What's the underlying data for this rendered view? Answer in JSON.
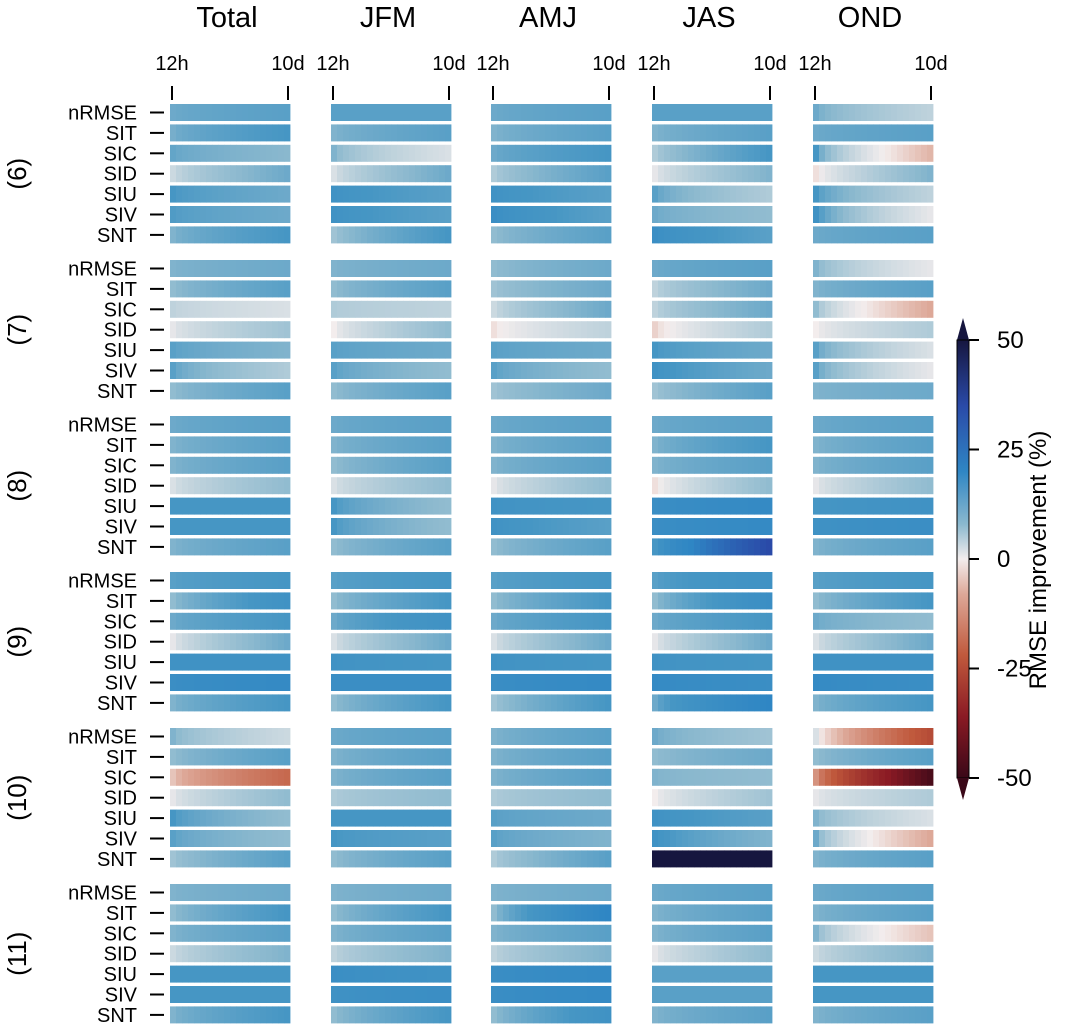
{
  "chart_data": {
    "type": "heatmap",
    "column_titles": [
      "Total",
      "JFM",
      "AMJ",
      "JAS",
      "OND"
    ],
    "x_tick_labels": [
      "12h",
      "10d"
    ],
    "variables": [
      "nRMSE",
      "SIT",
      "SIC",
      "SID",
      "SIU",
      "SIV",
      "SNT"
    ],
    "groups": [
      "(6)",
      "(7)",
      "(8)",
      "(9)",
      "(10)",
      "(11)"
    ],
    "colorbar": {
      "label": "RMSE improvement (%)",
      "range": [
        -50,
        50
      ],
      "ticks": [
        50,
        25,
        0,
        -25,
        -50
      ],
      "tick_labels": [
        "50",
        "25",
        "0",
        "-25",
        "-50"
      ],
      "extend": "both"
    },
    "cells_per_strip": 20,
    "values": {
      "(6)": {
        "Total": {
          "nRMSE": [
            18,
            20
          ],
          "SIT": [
            17,
            22
          ],
          "SIC": [
            19,
            15
          ],
          "SID": [
            6,
            18
          ],
          "SIU": [
            22,
            18
          ],
          "SIV": [
            21,
            18
          ],
          "SNT": [
            16,
            22
          ]
        },
        "JFM": {
          "nRMSE": [
            20,
            20
          ],
          "SIT": [
            16,
            20
          ],
          "SIC": [
            16,
            4
          ],
          "SID": [
            4,
            18
          ],
          "SIU": [
            24,
            20
          ],
          "SIV": [
            24,
            20
          ],
          "SNT": [
            12,
            22
          ]
        },
        "AMJ": {
          "nRMSE": [
            18,
            20
          ],
          "SIT": [
            16,
            20
          ],
          "SIC": [
            18,
            22
          ],
          "SID": [
            10,
            20
          ],
          "SIU": [
            24,
            20
          ],
          "SIV": [
            26,
            20
          ],
          "SNT": [
            14,
            20
          ]
        },
        "JAS": {
          "nRMSE": [
            20,
            20
          ],
          "SIT": [
            16,
            20
          ],
          "SIC": [
            10,
            22
          ],
          "SID": [
            2,
            16
          ],
          "SIU": [
            20,
            10
          ],
          "SIV": [
            18,
            14
          ],
          "SNT": [
            26,
            20
          ]
        },
        "OND": {
          "nRMSE": [
            18,
            8
          ],
          "SIT": [
            18,
            20
          ],
          "SIC": [
            22,
            -8
          ],
          "SID": [
            -2,
            16
          ],
          "SIU": [
            22,
            8
          ],
          "SIV": [
            24,
            2
          ],
          "SNT": [
            18,
            20
          ]
        }
      },
      "(7)": {
        "Total": {
          "nRMSE": [
            16,
            18
          ],
          "SIT": [
            14,
            20
          ],
          "SIC": [
            8,
            4
          ],
          "SID": [
            2,
            12
          ],
          "SIU": [
            20,
            16
          ],
          "SIV": [
            20,
            10
          ],
          "SNT": [
            14,
            20
          ]
        },
        "JFM": {
          "nRMSE": [
            16,
            18
          ],
          "SIT": [
            14,
            20
          ],
          "SIC": [
            10,
            8
          ],
          "SID": [
            0,
            14
          ],
          "SIU": [
            20,
            18
          ],
          "SIV": [
            20,
            14
          ],
          "SNT": [
            14,
            20
          ]
        },
        "AMJ": {
          "nRMSE": [
            14,
            18
          ],
          "SIT": [
            12,
            18
          ],
          "SIC": [
            6,
            18
          ],
          "SID": [
            -2,
            8
          ],
          "SIU": [
            20,
            18
          ],
          "SIV": [
            20,
            14
          ],
          "SNT": [
            12,
            18
          ]
        },
        "JAS": {
          "nRMSE": [
            18,
            20
          ],
          "SIT": [
            8,
            18
          ],
          "SIC": [
            8,
            18
          ],
          "SID": [
            -4,
            10
          ],
          "SIU": [
            22,
            18
          ],
          "SIV": [
            24,
            18
          ],
          "SNT": [
            12,
            20
          ]
        },
        "OND": {
          "nRMSE": [
            16,
            2
          ],
          "SIT": [
            16,
            20
          ],
          "SIC": [
            14,
            -10
          ],
          "SID": [
            0,
            10
          ],
          "SIU": [
            20,
            4
          ],
          "SIV": [
            20,
            2
          ],
          "SNT": [
            16,
            18
          ]
        }
      },
      "(8)": {
        "Total": {
          "nRMSE": [
            18,
            20
          ],
          "SIT": [
            16,
            20
          ],
          "SIC": [
            16,
            20
          ],
          "SID": [
            4,
            14
          ],
          "SIU": [
            22,
            22
          ],
          "SIV": [
            22,
            22
          ],
          "SNT": [
            16,
            20
          ]
        },
        "JFM": {
          "nRMSE": [
            18,
            20
          ],
          "SIT": [
            16,
            20
          ],
          "SIC": [
            14,
            20
          ],
          "SID": [
            4,
            14
          ],
          "SIU": [
            22,
            14
          ],
          "SIV": [
            22,
            14
          ],
          "SNT": [
            14,
            20
          ]
        },
        "AMJ": {
          "nRMSE": [
            18,
            20
          ],
          "SIT": [
            16,
            20
          ],
          "SIC": [
            16,
            20
          ],
          "SID": [
            2,
            14
          ],
          "SIU": [
            24,
            22
          ],
          "SIV": [
            24,
            20
          ],
          "SNT": [
            14,
            20
          ]
        },
        "JAS": {
          "nRMSE": [
            18,
            20
          ],
          "SIT": [
            16,
            22
          ],
          "SIC": [
            16,
            20
          ],
          "SID": [
            -2,
            14
          ],
          "SIU": [
            26,
            28
          ],
          "SIV": [
            26,
            28
          ],
          "SNT": [
            22,
            38
          ]
        },
        "OND": {
          "nRMSE": [
            18,
            20
          ],
          "SIT": [
            16,
            20
          ],
          "SIC": [
            16,
            20
          ],
          "SID": [
            2,
            14
          ],
          "SIU": [
            22,
            24
          ],
          "SIV": [
            24,
            26
          ],
          "SNT": [
            16,
            20
          ]
        }
      },
      "(9)": {
        "Total": {
          "nRMSE": [
            20,
            22
          ],
          "SIT": [
            14,
            24
          ],
          "SIC": [
            18,
            22
          ],
          "SID": [
            2,
            18
          ],
          "SIU": [
            24,
            24
          ],
          "SIV": [
            26,
            28
          ],
          "SNT": [
            16,
            22
          ]
        },
        "JFM": {
          "nRMSE": [
            20,
            22
          ],
          "SIT": [
            14,
            22
          ],
          "SIC": [
            18,
            24
          ],
          "SID": [
            4,
            18
          ],
          "SIU": [
            24,
            22
          ],
          "SIV": [
            26,
            26
          ],
          "SNT": [
            14,
            22
          ]
        },
        "AMJ": {
          "nRMSE": [
            20,
            22
          ],
          "SIT": [
            14,
            22
          ],
          "SIC": [
            18,
            22
          ],
          "SID": [
            4,
            18
          ],
          "SIU": [
            24,
            22
          ],
          "SIV": [
            26,
            28
          ],
          "SNT": [
            12,
            22
          ]
        },
        "JAS": {
          "nRMSE": [
            20,
            24
          ],
          "SIT": [
            14,
            26
          ],
          "SIC": [
            18,
            22
          ],
          "SID": [
            2,
            18
          ],
          "SIU": [
            24,
            22
          ],
          "SIV": [
            28,
            26
          ],
          "SNT": [
            18,
            30
          ]
        },
        "OND": {
          "nRMSE": [
            20,
            22
          ],
          "SIT": [
            14,
            22
          ],
          "SIC": [
            18,
            14
          ],
          "SID": [
            4,
            18
          ],
          "SIU": [
            24,
            24
          ],
          "SIV": [
            28,
            26
          ],
          "SNT": [
            16,
            22
          ]
        }
      },
      "(10)": {
        "Total": {
          "nRMSE": [
            16,
            6
          ],
          "SIT": [
            14,
            20
          ],
          "SIC": [
            -6,
            -22
          ],
          "SID": [
            2,
            14
          ],
          "SIU": [
            22,
            14
          ],
          "SIV": [
            20,
            14
          ],
          "SNT": [
            12,
            20
          ]
        },
        "JFM": {
          "nRMSE": [
            18,
            20
          ],
          "SIT": [
            16,
            20
          ],
          "SIC": [
            16,
            20
          ],
          "SID": [
            10,
            14
          ],
          "SIU": [
            22,
            22
          ],
          "SIV": [
            22,
            20
          ],
          "SNT": [
            14,
            20
          ]
        },
        "AMJ": {
          "nRMSE": [
            16,
            20
          ],
          "SIT": [
            16,
            20
          ],
          "SIC": [
            16,
            20
          ],
          "SID": [
            10,
            14
          ],
          "SIU": [
            20,
            18
          ],
          "SIV": [
            20,
            16
          ],
          "SNT": [
            10,
            20
          ]
        },
        "JAS": {
          "nRMSE": [
            18,
            12
          ],
          "SIT": [
            14,
            18
          ],
          "SIC": [
            16,
            14
          ],
          "SID": [
            0,
            12
          ],
          "SIU": [
            24,
            20
          ],
          "SIV": [
            24,
            16
          ],
          "SNT": [
            50,
            50
          ]
        },
        "OND": {
          "nRMSE": [
            4,
            -28
          ],
          "SIT": [
            14,
            20
          ],
          "SIC": [
            -14,
            -48
          ],
          "SID": [
            2,
            10
          ],
          "SIU": [
            16,
            4
          ],
          "SIV": [
            18,
            -10
          ],
          "SNT": [
            16,
            20
          ]
        }
      },
      "(11)": {
        "Total": {
          "nRMSE": [
            16,
            18
          ],
          "SIT": [
            14,
            22
          ],
          "SIC": [
            16,
            20
          ],
          "SID": [
            6,
            16
          ],
          "SIU": [
            22,
            22
          ],
          "SIV": [
            22,
            22
          ],
          "SNT": [
            16,
            22
          ]
        },
        "JFM": {
          "nRMSE": [
            16,
            18
          ],
          "SIT": [
            14,
            22
          ],
          "SIC": [
            16,
            20
          ],
          "SID": [
            8,
            16
          ],
          "SIU": [
            26,
            24
          ],
          "SIV": [
            24,
            26
          ],
          "SNT": [
            14,
            22
          ]
        },
        "AMJ": {
          "nRMSE": [
            16,
            18
          ],
          "SIT": [
            14,
            30
          ],
          "SIC": [
            16,
            20
          ],
          "SID": [
            8,
            16
          ],
          "SIU": [
            26,
            28
          ],
          "SIV": [
            26,
            28
          ],
          "SNT": [
            14,
            24
          ]
        },
        "JAS": {
          "nRMSE": [
            18,
            20
          ],
          "SIT": [
            16,
            20
          ],
          "SIC": [
            16,
            20
          ],
          "SID": [
            2,
            14
          ],
          "SIU": [
            20,
            20
          ],
          "SIV": [
            20,
            20
          ],
          "SNT": [
            16,
            20
          ]
        },
        "OND": {
          "nRMSE": [
            18,
            20
          ],
          "SIT": [
            16,
            20
          ],
          "SIC": [
            16,
            -6
          ],
          "SID": [
            6,
            16
          ],
          "SIU": [
            22,
            22
          ],
          "SIV": [
            22,
            22
          ],
          "SNT": [
            16,
            20
          ]
        }
      }
    }
  }
}
